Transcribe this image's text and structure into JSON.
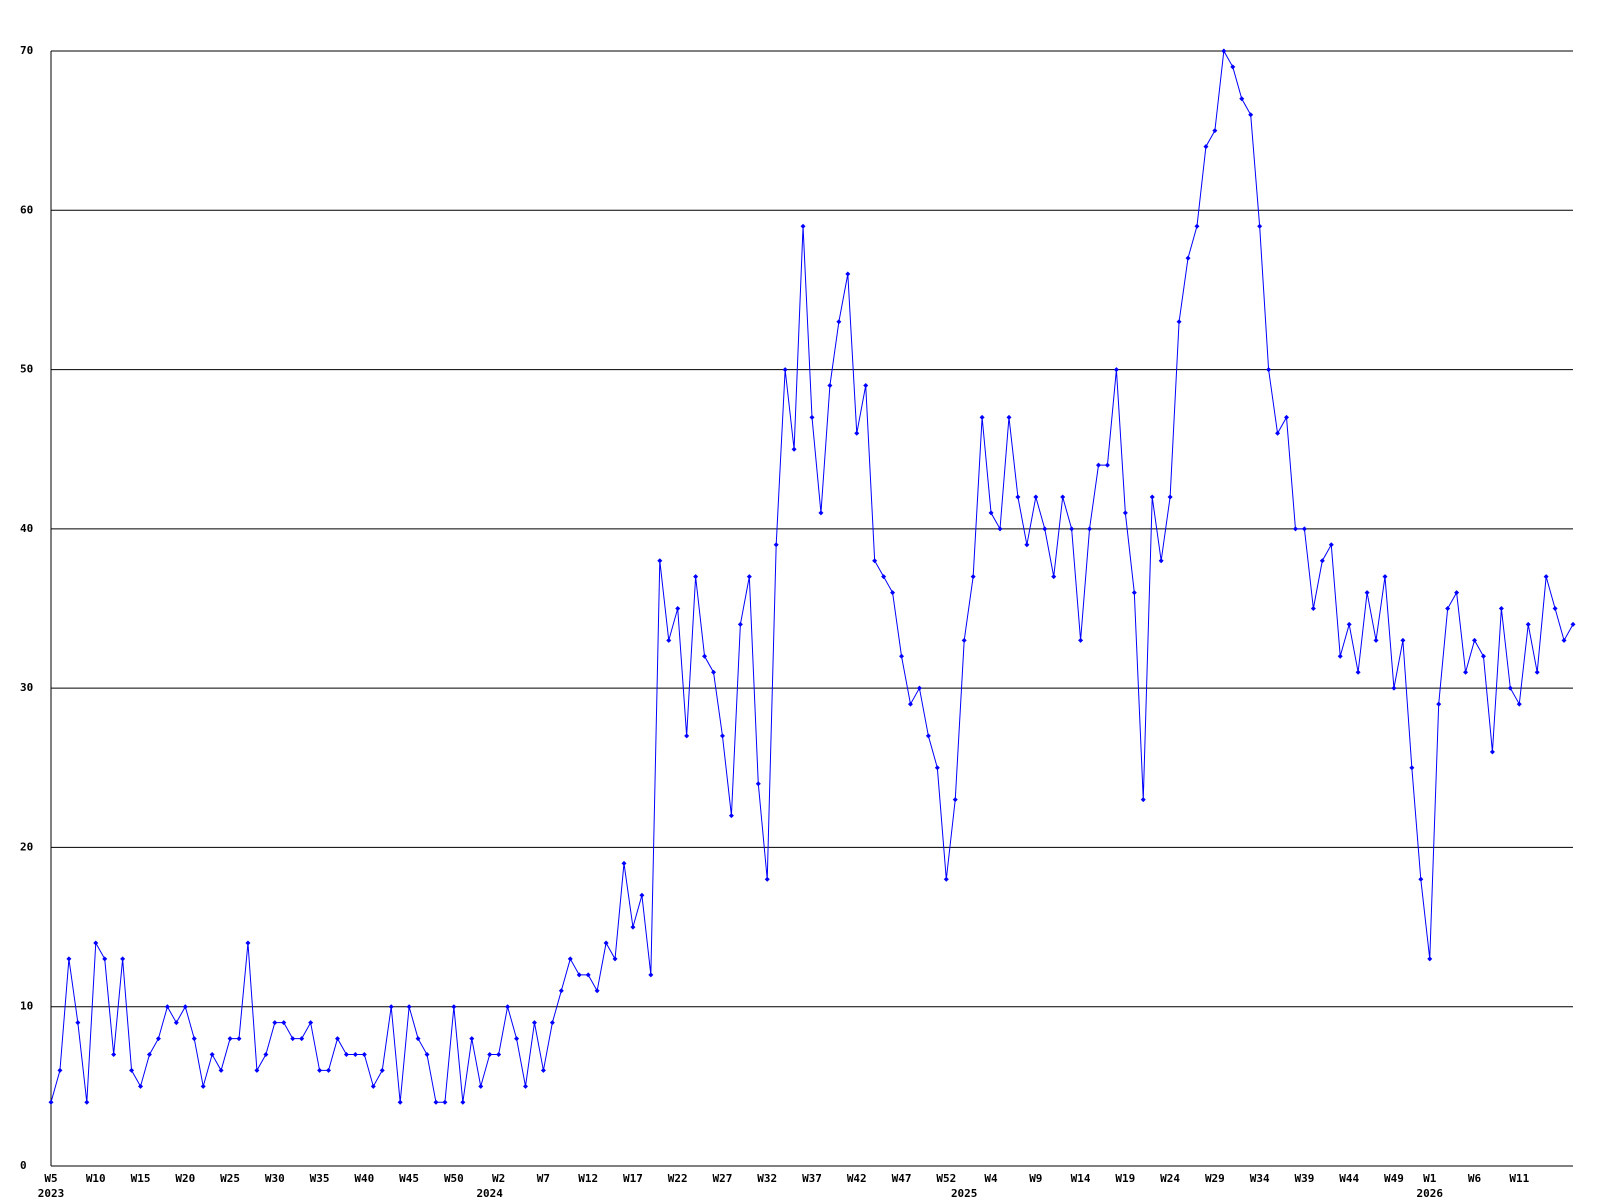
{
  "chart_data": {
    "type": "line",
    "x": [
      "W5",
      null,
      null,
      null,
      null,
      "W10",
      null,
      null,
      null,
      null,
      "W15",
      null,
      null,
      null,
      null,
      "W20",
      null,
      null,
      null,
      null,
      "W25",
      null,
      null,
      null,
      null,
      "W30",
      null,
      null,
      null,
      null,
      "W35",
      null,
      null,
      null,
      null,
      "W40",
      null,
      null,
      null,
      null,
      "W45",
      null,
      null,
      null,
      null,
      "W50",
      null,
      null,
      null,
      null,
      "W2",
      null,
      null,
      null,
      null,
      "W7",
      null,
      null,
      null,
      null,
      "W12",
      null,
      null,
      null,
      null,
      "W17",
      null,
      null,
      null,
      null,
      "W22",
      null,
      null,
      null,
      null,
      "W27",
      null,
      null,
      null,
      null,
      "W32",
      null,
      null,
      null,
      null,
      "W37",
      null,
      null,
      null,
      null,
      "W42",
      null,
      null,
      null,
      null,
      "W47",
      null,
      null,
      null,
      null,
      "W52",
      null,
      null,
      null,
      null,
      "W4",
      null,
      null,
      null,
      null,
      "W9",
      null,
      null,
      null,
      null,
      "W14",
      null,
      null,
      null,
      null,
      "W19",
      null,
      null,
      null,
      null,
      "W24",
      null,
      null,
      null,
      null,
      "W29",
      null,
      null,
      null,
      null,
      "W34",
      null,
      null,
      null,
      null,
      "W39",
      null,
      null,
      null,
      null,
      "W44",
      null,
      null,
      null,
      null,
      "W49",
      null,
      null,
      null,
      "W1",
      null,
      null,
      null,
      null,
      "W6",
      null,
      null,
      null,
      null,
      "W11",
      null,
      null,
      null,
      null,
      null,
      null
    ],
    "years": [
      "2023",
      null,
      null,
      null,
      null,
      null,
      null,
      null,
      null,
      null,
      null,
      null,
      null,
      null,
      null,
      null,
      null,
      null,
      null,
      null,
      null,
      null,
      null,
      null,
      null,
      null,
      null,
      null,
      null,
      null,
      null,
      null,
      null,
      null,
      null,
      null,
      null,
      null,
      null,
      null,
      null,
      null,
      null,
      null,
      null,
      null,
      null,
      null,
      null,
      "2024",
      null,
      null,
      null,
      null,
      null,
      null,
      null,
      null,
      null,
      null,
      null,
      null,
      null,
      null,
      null,
      null,
      null,
      null,
      null,
      null,
      null,
      null,
      null,
      null,
      null,
      null,
      null,
      null,
      null,
      null,
      null,
      null,
      null,
      null,
      null,
      null,
      null,
      null,
      null,
      null,
      null,
      null,
      null,
      null,
      null,
      null,
      null,
      null,
      null,
      null,
      null,
      null,
      "2025",
      null,
      null,
      null,
      null,
      null,
      null,
      null,
      null,
      null,
      null,
      null,
      null,
      null,
      null,
      null,
      null,
      null,
      null,
      null,
      null,
      null,
      null,
      null,
      null,
      null,
      null,
      null,
      null,
      null,
      null,
      null,
      null,
      null,
      null,
      null,
      null,
      null,
      null,
      null,
      null,
      null,
      null,
      null,
      null,
      null,
      null,
      null,
      null,
      null,
      null,
      null,
      "2026",
      null,
      null,
      null,
      null,
      null,
      null,
      null,
      null,
      null,
      null,
      null,
      null,
      null,
      null,
      null,
      null
    ],
    "series": [
      {
        "color": "#0000ff",
        "values": [
          4,
          6,
          13,
          9,
          4,
          14,
          13,
          7,
          13,
          6,
          5,
          7,
          8,
          10,
          9,
          10,
          8,
          5,
          7,
          6,
          8,
          8,
          14,
          6,
          7,
          9,
          9,
          8,
          8,
          9,
          6,
          6,
          8,
          7,
          7,
          7,
          5,
          6,
          10,
          4,
          10,
          8,
          7,
          4,
          4,
          10,
          4,
          8,
          5,
          7,
          7,
          10,
          8,
          5,
          9,
          6,
          9,
          11,
          13,
          12,
          12,
          11,
          14,
          13,
          19,
          15,
          17,
          12,
          38,
          33,
          35,
          27,
          37,
          32,
          31,
          27,
          22,
          34,
          37,
          24,
          18,
          39,
          50,
          45,
          59,
          47,
          41,
          49,
          53,
          56,
          46,
          49,
          38,
          37,
          36,
          32,
          29,
          30,
          27,
          25,
          18,
          23,
          33,
          37,
          47,
          41,
          40,
          47,
          42,
          39,
          42,
          40,
          37,
          42,
          40,
          33,
          40,
          44,
          44,
          50,
          41,
          36,
          23,
          42,
          38,
          42,
          53,
          57,
          59,
          64,
          65,
          70,
          69,
          67,
          66,
          59,
          50,
          46,
          47,
          40,
          40,
          35,
          38,
          39,
          32,
          34,
          31,
          36,
          33,
          37,
          30,
          33,
          25,
          18,
          13,
          29,
          35,
          36,
          31,
          33,
          32,
          26,
          35,
          30,
          29,
          34,
          31,
          37,
          35,
          33,
          34
        ]
      }
    ],
    "ylim": [
      0,
      70
    ],
    "yticks": [
      0,
      10,
      20,
      30,
      40,
      50,
      60,
      70
    ],
    "grid": true
  }
}
